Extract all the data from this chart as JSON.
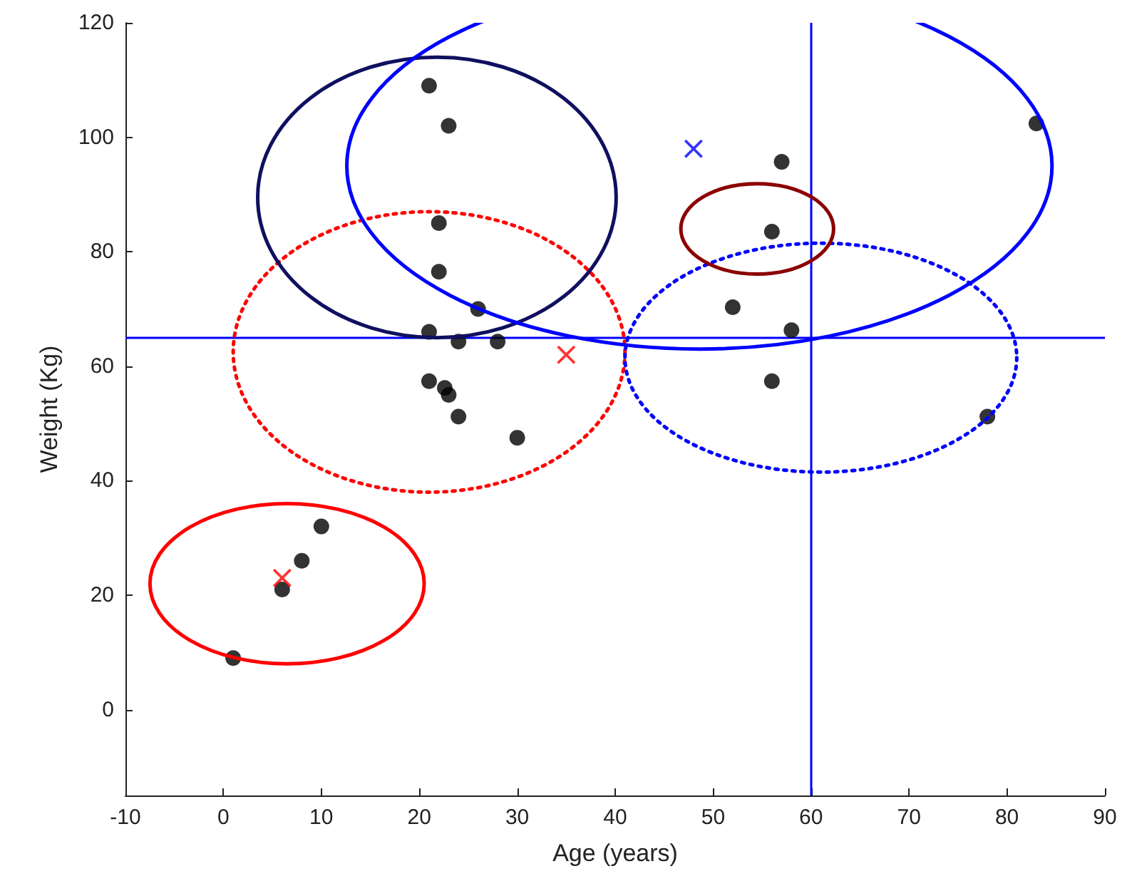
{
  "chart_data": {
    "type": "scatter",
    "xlabel": "Age (years)",
    "ylabel": "Weight (Kg)",
    "xlim": [
      -10,
      90
    ],
    "xticks": [
      -10,
      0,
      10,
      20,
      30,
      40,
      50,
      60,
      70,
      80,
      90
    ],
    "ylim": [
      -15,
      120
    ],
    "yticks": [
      0,
      20,
      40,
      60,
      80,
      100,
      120
    ],
    "grid": false,
    "ref_lines": [
      {
        "axis": "x",
        "value": 60,
        "color": "#0000ff"
      },
      {
        "axis": "y",
        "value": 65,
        "color": "#0000ff"
      }
    ],
    "series": [
      {
        "type": "scatter",
        "color": "#000000",
        "marker": "circle",
        "x": [
          1,
          6,
          8,
          10,
          21,
          23,
          22,
          22,
          26,
          21,
          24,
          28,
          21,
          22.6,
          23,
          24,
          30,
          57,
          56,
          52,
          58,
          56,
          78,
          83
        ],
        "values": [
          9,
          21,
          26,
          32,
          109,
          102,
          85,
          76.5,
          70,
          66,
          64.3,
          64.3,
          57.4,
          56.2,
          55,
          51.2,
          47.5,
          95.7,
          83.5,
          70.3,
          66.3,
          57.4,
          51.2,
          102.4
        ]
      },
      {
        "type": "scatter",
        "color": "#ff0000",
        "marker": "cross",
        "x": [
          6,
          35
        ],
        "values": [
          23,
          62
        ]
      },
      {
        "color": "#0000ff",
        "marker": "cross",
        "x": [
          48
        ],
        "values": [
          98
        ]
      }
    ]
  }
}
